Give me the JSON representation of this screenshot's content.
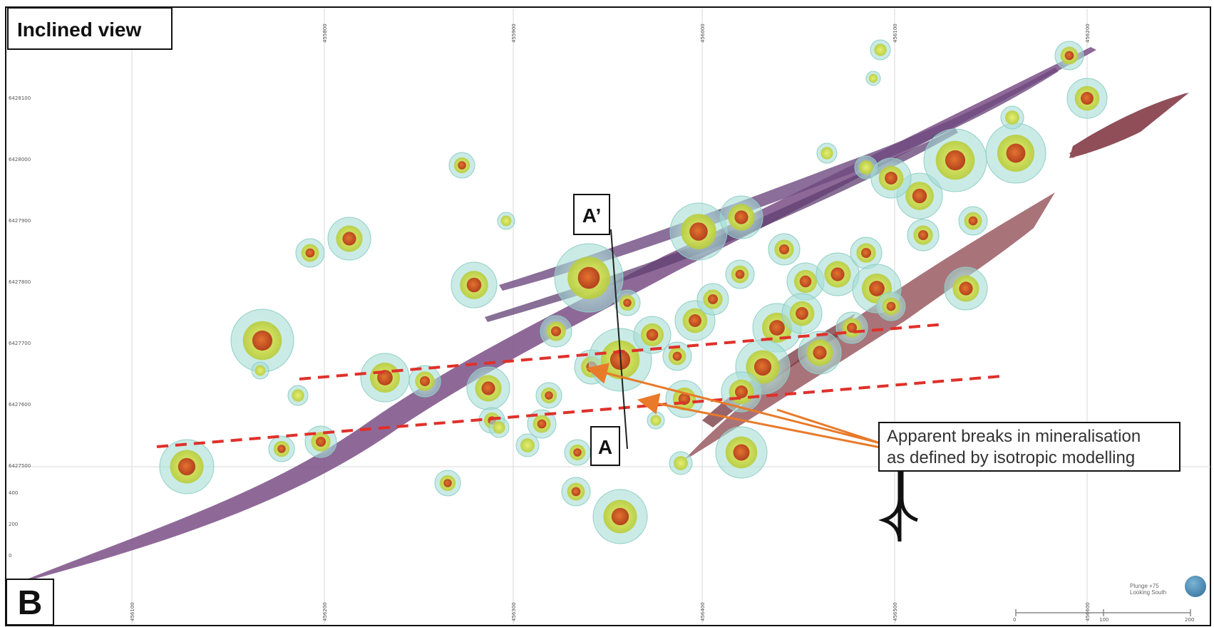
{
  "title": "Inclined view",
  "panel_letter": "B",
  "section_labels": {
    "start": "A",
    "end": "A’"
  },
  "annotation": {
    "line1": "Apparent breaks in mineralisation",
    "line2": "as defined by isotropic modelling"
  },
  "northing_ticks": [
    "6428100",
    "6428000",
    "6427900",
    "6427800",
    "6427700",
    "6427600",
    "6427500"
  ],
  "elevation_ticks": [
    "400",
    "200",
    "0"
  ],
  "easting_ticks_top": [
    "455800",
    "455900",
    "456000",
    "456100",
    "456200"
  ],
  "easting_ticks_bottom": [
    "456100",
    "456200",
    "456300",
    "456400",
    "456500",
    "456600"
  ],
  "view_info": {
    "line1": "Plunge +75",
    "line2": "Looking South"
  },
  "scale_ticks": [
    "0",
    "100",
    "200"
  ],
  "colors": {
    "shell_outer": "#b7e6e0",
    "shell_mid": "#d8e34a",
    "core": "#d0552a",
    "dyke": "#7a4f86",
    "fault": "#9a5a63",
    "break_line": "#e0302a",
    "arrow": "#e87a2a"
  }
}
